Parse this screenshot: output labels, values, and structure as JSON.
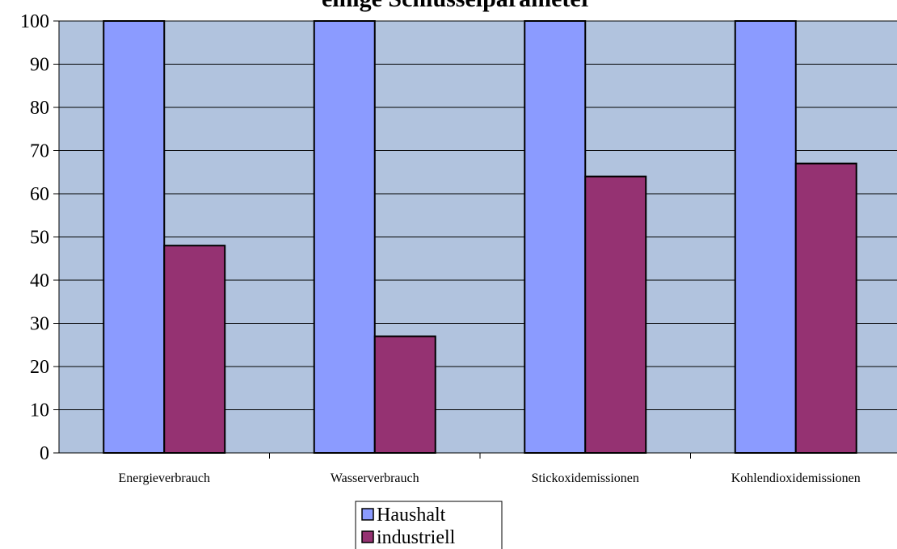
{
  "chart_data": {
    "type": "bar",
    "title": "einige Schlüsselparameter",
    "categories": [
      "Energieverbrauch",
      "Wasserverbrauch",
      "Stickoxidemissionen",
      "Kohlendioxidemissionen"
    ],
    "series": [
      {
        "name": "Haushalt",
        "values": [
          100,
          100,
          100,
          100
        ],
        "color": "#8b9bff"
      },
      {
        "name": "industriell",
        "values": [
          48,
          27,
          64,
          67
        ],
        "color": "#953272"
      }
    ],
    "xlabel": "",
    "ylabel": "",
    "ylim": [
      0,
      100
    ],
    "yticks": [
      0,
      10,
      20,
      30,
      40,
      50,
      60,
      70,
      80,
      90,
      100
    ],
    "grid": true,
    "plot_background": "#b1c3de",
    "legend_position": "bottom"
  }
}
